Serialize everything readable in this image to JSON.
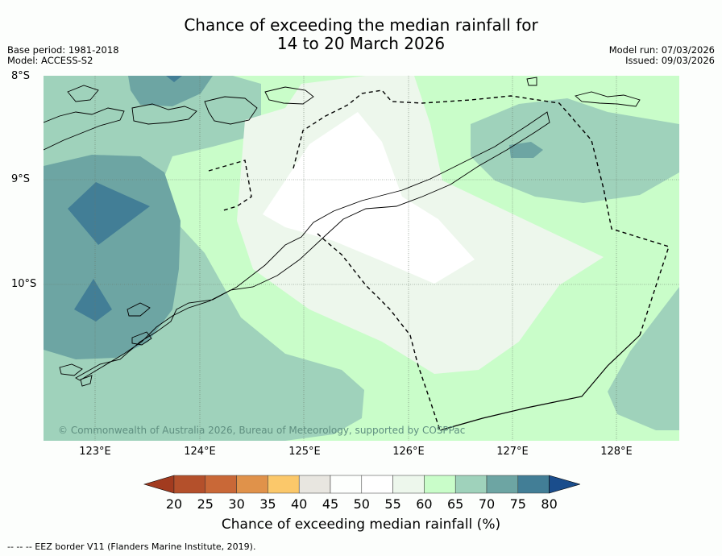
{
  "title": {
    "line1": "Chance of exceeding the median rainfall for",
    "line2": "14 to 20 March 2026"
  },
  "meta": {
    "base_period": "Base period: 1981-2018",
    "model": "Model: ACCESS-S2",
    "model_run": "Model run: 07/03/2026",
    "issued": "Issued: 09/03/2026"
  },
  "axes": {
    "lat_labels": [
      "8°S",
      "9°S",
      "10°S"
    ],
    "lon_labels": [
      "123°E",
      "124°E",
      "125°E",
      "126°E",
      "127°E",
      "128°E"
    ]
  },
  "map": {
    "copyright": "© Commonwealth of Australia 2026, Bureau of Meteorology, supported by COSPPac"
  },
  "colorbar": {
    "labels": [
      "20",
      "25",
      "30",
      "35",
      "40",
      "45",
      "50",
      "55",
      "60",
      "65",
      "70",
      "75",
      "80"
    ],
    "colors": [
      "#a23b1f",
      "#b4502b",
      "#c96837",
      "#e0924a",
      "#fbc86a",
      "#e8e6e0",
      "#fdfffd",
      "#ffffff",
      "#edf7ec",
      "#c9fdc9",
      "#9fd2bb",
      "#6da5a3",
      "#427e96",
      "#1a4d8c"
    ],
    "title": "Chance of exceeding median rainfall (%)"
  },
  "footer": "--  --  -- EEZ border V11 (Flanders Marine Institute, 2019)."
}
